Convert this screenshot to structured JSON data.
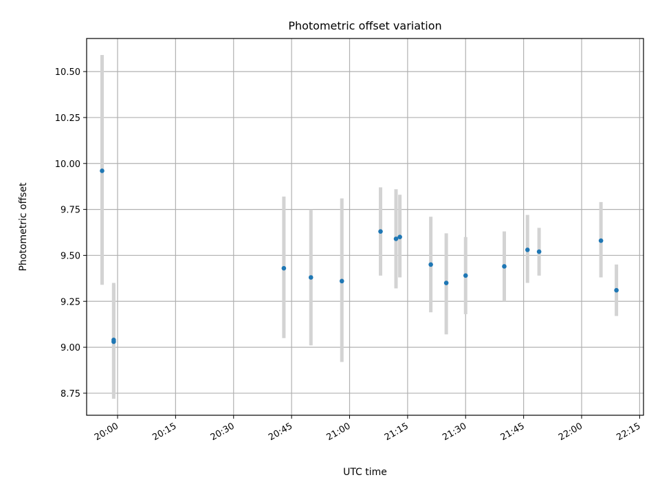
{
  "chart_data": {
    "type": "scatter",
    "title": "Photometric offset variation",
    "xlabel": "UTC time",
    "ylabel": "Photometric offset",
    "x_tick_labels": [
      "20:00",
      "20:15",
      "20:30",
      "20:45",
      "21:00",
      "21:15",
      "21:30",
      "21:45",
      "22:00",
      "22:15"
    ],
    "y_tick_labels": [
      "8.75",
      "9.00",
      "9.25",
      "9.50",
      "9.75",
      "10.00",
      "10.25",
      "10.50"
    ],
    "xlim": [
      "19:52",
      "22:16"
    ],
    "ylim": [
      8.63,
      10.68
    ],
    "grid": true,
    "colors": {
      "points": "#1f77b4",
      "error_bars": "#d3d3d3"
    },
    "series": [
      {
        "points": [
          {
            "x": "19:56",
            "y": 9.96,
            "err_low": 9.34,
            "err_high": 10.59
          },
          {
            "x": "19:59",
            "y": 9.03,
            "err_low": 8.72,
            "err_high": 9.35
          },
          {
            "x": "19:59",
            "y": 9.04,
            "err_low": 8.74,
            "err_high": 9.34
          },
          {
            "x": "20:43",
            "y": 9.43,
            "err_low": 9.05,
            "err_high": 9.82
          },
          {
            "x": "20:50",
            "y": 9.38,
            "err_low": 9.01,
            "err_high": 9.75
          },
          {
            "x": "20:58",
            "y": 9.36,
            "err_low": 8.92,
            "err_high": 9.81
          },
          {
            "x": "21:08",
            "y": 9.63,
            "err_low": 9.39,
            "err_high": 9.87
          },
          {
            "x": "21:12",
            "y": 9.59,
            "err_low": 9.32,
            "err_high": 9.86
          },
          {
            "x": "21:13",
            "y": 9.6,
            "err_low": 9.38,
            "err_high": 9.83
          },
          {
            "x": "21:21",
            "y": 9.45,
            "err_low": 9.19,
            "err_high": 9.71
          },
          {
            "x": "21:25",
            "y": 9.35,
            "err_low": 9.07,
            "err_high": 9.62
          },
          {
            "x": "21:30",
            "y": 9.39,
            "err_low": 9.18,
            "err_high": 9.6
          },
          {
            "x": "21:40",
            "y": 9.44,
            "err_low": 9.25,
            "err_high": 9.63
          },
          {
            "x": "21:46",
            "y": 9.53,
            "err_low": 9.35,
            "err_high": 9.72
          },
          {
            "x": "21:49",
            "y": 9.52,
            "err_low": 9.39,
            "err_high": 9.65
          },
          {
            "x": "22:05",
            "y": 9.58,
            "err_low": 9.38,
            "err_high": 9.79
          },
          {
            "x": "22:09",
            "y": 9.31,
            "err_low": 9.17,
            "err_high": 9.45
          }
        ]
      }
    ]
  }
}
